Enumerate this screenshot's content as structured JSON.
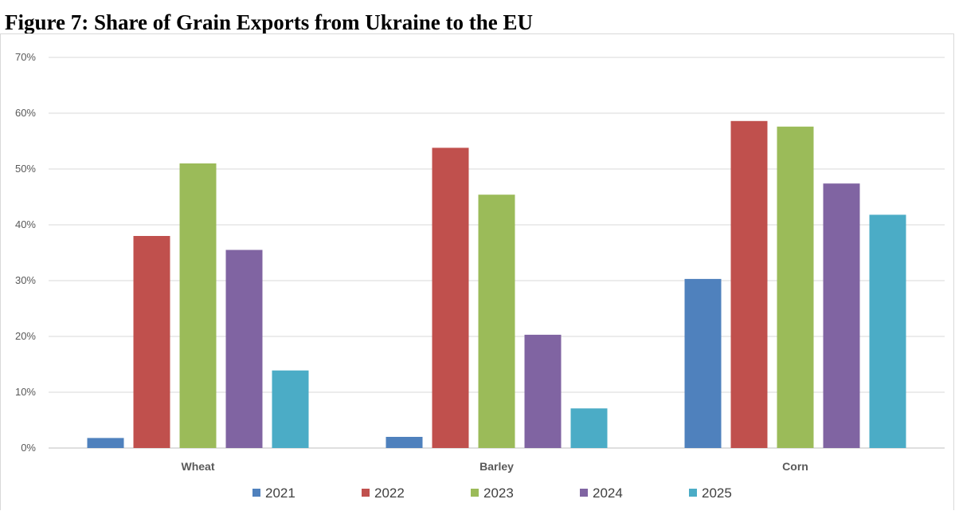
{
  "chart_data": {
    "type": "bar",
    "title": "Figure 7: Share of Grain Exports from Ukraine to the EU",
    "xlabel": "",
    "ylabel": "",
    "ylim": [
      0,
      70
    ],
    "yticks": [
      0,
      10,
      20,
      30,
      40,
      50,
      60,
      70
    ],
    "ytick_labels": [
      "0%",
      "10%",
      "20%",
      "30%",
      "40%",
      "50%",
      "60%",
      "70%"
    ],
    "grid": true,
    "legend_position": "bottom",
    "categories": [
      "Wheat",
      "Barley",
      "Corn"
    ],
    "series": [
      {
        "name": "2021",
        "color": "#4f81bd",
        "values": [
          1.8,
          2.0,
          30.3
        ]
      },
      {
        "name": "2022",
        "color": "#c0504d",
        "values": [
          38.0,
          53.8,
          58.6
        ]
      },
      {
        "name": "2023",
        "color": "#9bbb59",
        "values": [
          51.0,
          45.4,
          57.6
        ]
      },
      {
        "name": "2024",
        "color": "#8064a2",
        "values": [
          35.5,
          20.3,
          47.4
        ]
      },
      {
        "name": "2025",
        "color": "#4bacc6",
        "values": [
          13.9,
          7.1,
          41.8
        ]
      }
    ]
  }
}
